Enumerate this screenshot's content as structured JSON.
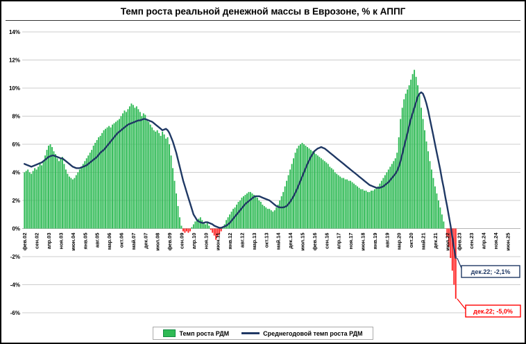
{
  "chart_data": {
    "type": "bar",
    "title": "Темп роста реальной денежной массы в Еврозоне, % к АППГ",
    "xlabel": "",
    "ylabel": "",
    "ylim": [
      -6,
      14
    ],
    "grid": true,
    "gridline_color": "#CCCCCC",
    "legend_position": "bottom",
    "axis_months_total": 288,
    "tick_interval_months": 7,
    "x_start": "фев.02",
    "x_tick_labels": [
      "фев.02",
      "сен.02",
      "апр.03",
      "ноя.03",
      "июн.04",
      "янв.05",
      "авг.05",
      "мар.06",
      "окт.06",
      "май.07",
      "дек.07",
      "июл.08",
      "фев.09",
      "сен.09",
      "апр.10",
      "ноя.10",
      "июн.11",
      "янв.12",
      "авг.12",
      "мар.13",
      "окт.13",
      "май.14",
      "дек.14",
      "июл.15",
      "фев.16",
      "сен.16",
      "апр.17",
      "ноя.17",
      "июн.18",
      "янв.19",
      "авг.19",
      "мар.20",
      "окт.20",
      "май.21",
      "дек.21",
      "июл.22",
      "фев.23",
      "сен.23",
      "апр.24",
      "ноя.24",
      "июн.25"
    ],
    "y_ticks": [
      {
        "v": 14,
        "label": "14%"
      },
      {
        "v": 12,
        "label": "12%"
      },
      {
        "v": 10,
        "label": "10%"
      },
      {
        "v": 8,
        "label": "8%"
      },
      {
        "v": 6,
        "label": "6%"
      },
      {
        "v": 4,
        "label": "4%"
      },
      {
        "v": 2,
        "label": "2%"
      },
      {
        "v": 0,
        "label": "0%"
      },
      {
        "v": -2,
        "label": "-2%"
      },
      {
        "v": -4,
        "label": "-4%"
      },
      {
        "v": -6,
        "label": "-6%"
      }
    ],
    "series": [
      {
        "name": "Темп роста РДМ",
        "kind": "bar",
        "color_positive": "#2FBA55",
        "color_negative": "#FF1F1F",
        "values": [
          4.0,
          4.1,
          4.2,
          4.0,
          3.9,
          4.1,
          4.3,
          4.2,
          4.4,
          4.6,
          4.5,
          4.8,
          5.2,
          5.6,
          5.9,
          6.0,
          5.8,
          5.5,
          5.3,
          5.0,
          4.8,
          5.0,
          5.1,
          4.6,
          4.2,
          3.9,
          3.7,
          3.6,
          3.5,
          3.6,
          3.8,
          4.0,
          4.2,
          4.4,
          4.6,
          4.8,
          5.0,
          5.2,
          5.4,
          5.6,
          5.9,
          6.1,
          6.3,
          6.5,
          6.6,
          6.8,
          7.0,
          7.1,
          7.2,
          7.3,
          7.2,
          7.4,
          7.5,
          7.6,
          7.7,
          7.8,
          8.0,
          8.2,
          8.4,
          8.3,
          8.5,
          8.7,
          8.9,
          8.8,
          8.6,
          8.7,
          8.5,
          8.3,
          8.0,
          8.2,
          8.1,
          7.8,
          7.6,
          7.4,
          7.2,
          7.0,
          6.9,
          7.0,
          6.8,
          6.6,
          6.9,
          6.7,
          6.4,
          6.5,
          6.0,
          5.2,
          4.3,
          3.4,
          2.5,
          1.6,
          0.8,
          0.2,
          -0.2,
          -0.3,
          -0.2,
          -0.3,
          -0.2,
          0.1,
          0.3,
          0.5,
          0.6,
          0.7,
          0.8,
          0.6,
          0.4,
          0.3,
          0.4,
          0.2,
          -0.1,
          -0.3,
          -0.5,
          -0.8,
          -0.6,
          -0.4,
          -0.2,
          0.1,
          0.3,
          0.6,
          0.8,
          1.0,
          1.2,
          1.4,
          1.5,
          1.7,
          1.9,
          2.0,
          2.2,
          2.3,
          2.4,
          2.5,
          2.6,
          2.6,
          2.5,
          2.4,
          2.3,
          2.2,
          2.0,
          1.9,
          1.7,
          1.6,
          1.5,
          1.4,
          1.4,
          1.3,
          1.2,
          1.3,
          1.5,
          1.7,
          2.0,
          2.3,
          2.6,
          3.0,
          3.4,
          3.8,
          4.2,
          4.6,
          5.0,
          5.4,
          5.7,
          5.9,
          6.0,
          6.1,
          6.0,
          5.9,
          5.8,
          5.7,
          5.6,
          5.5,
          5.4,
          5.3,
          5.2,
          5.1,
          5.0,
          4.9,
          4.8,
          4.7,
          4.6,
          4.4,
          4.3,
          4.2,
          4.0,
          3.9,
          3.8,
          3.7,
          3.6,
          3.6,
          3.5,
          3.5,
          3.4,
          3.4,
          3.3,
          3.2,
          3.1,
          3.0,
          2.9,
          2.8,
          2.8,
          2.7,
          2.7,
          2.6,
          2.6,
          2.7,
          2.7,
          2.8,
          2.9,
          3.0,
          3.2,
          3.4,
          3.6,
          3.8,
          4.0,
          4.2,
          4.4,
          4.6,
          4.8,
          5.0,
          5.4,
          6.5,
          7.8,
          8.6,
          9.2,
          9.6,
          9.9,
          10.2,
          10.6,
          11.0,
          11.3,
          10.8,
          10.2,
          9.5,
          8.6,
          7.8,
          7.0,
          6.2,
          5.5,
          4.8,
          4.2,
          3.6,
          3.0,
          2.5,
          2.0,
          1.5,
          1.0,
          0.5,
          0.0,
          -0.6,
          -1.3,
          -2.1,
          -3.0,
          -4.0,
          -5.0
        ]
      },
      {
        "name": "Среднегодовой темп роста РДМ",
        "kind": "line",
        "color": "#1F3864",
        "values": [
          4.6,
          4.55,
          4.5,
          4.45,
          4.4,
          4.45,
          4.5,
          4.55,
          4.6,
          4.65,
          4.7,
          4.8,
          4.9,
          5.0,
          5.1,
          5.15,
          5.2,
          5.2,
          5.15,
          5.1,
          5.05,
          5.0,
          5.0,
          4.9,
          4.8,
          4.7,
          4.6,
          4.5,
          4.4,
          4.35,
          4.3,
          4.3,
          4.3,
          4.35,
          4.4,
          4.45,
          4.5,
          4.6,
          4.7,
          4.8,
          4.9,
          5.0,
          5.1,
          5.25,
          5.4,
          5.5,
          5.6,
          5.75,
          5.9,
          6.05,
          6.2,
          6.35,
          6.5,
          6.65,
          6.8,
          6.9,
          7.0,
          7.1,
          7.2,
          7.3,
          7.4,
          7.45,
          7.5,
          7.55,
          7.6,
          7.65,
          7.7,
          7.7,
          7.75,
          7.8,
          7.8,
          7.75,
          7.7,
          7.65,
          7.6,
          7.5,
          7.4,
          7.3,
          7.2,
          7.1,
          7.0,
          7.05,
          7.1,
          7.0,
          6.8,
          6.5,
          6.2,
          5.8,
          5.4,
          4.9,
          4.4,
          3.9,
          3.4,
          3.0,
          2.6,
          2.2,
          1.8,
          1.4,
          1.0,
          0.8,
          0.6,
          0.5,
          0.45,
          0.4,
          0.4,
          0.45,
          0.45,
          0.4,
          0.35,
          0.3,
          0.2,
          0.15,
          0.1,
          0.05,
          0.05,
          0.1,
          0.15,
          0.2,
          0.3,
          0.4,
          0.55,
          0.7,
          0.85,
          1.0,
          1.15,
          1.3,
          1.45,
          1.6,
          1.75,
          1.85,
          1.95,
          2.05,
          2.15,
          2.25,
          2.3,
          2.3,
          2.3,
          2.25,
          2.2,
          2.15,
          2.1,
          2.05,
          2.0,
          1.9,
          1.8,
          1.7,
          1.6,
          1.55,
          1.5,
          1.5,
          1.5,
          1.55,
          1.6,
          1.75,
          1.9,
          2.1,
          2.3,
          2.55,
          2.8,
          3.1,
          3.4,
          3.7,
          4.0,
          4.3,
          4.6,
          4.85,
          5.1,
          5.3,
          5.5,
          5.6,
          5.7,
          5.75,
          5.8,
          5.75,
          5.7,
          5.6,
          5.5,
          5.4,
          5.3,
          5.2,
          5.1,
          5.0,
          4.9,
          4.8,
          4.7,
          4.6,
          4.5,
          4.4,
          4.3,
          4.2,
          4.1,
          4.0,
          3.9,
          3.8,
          3.7,
          3.6,
          3.5,
          3.4,
          3.3,
          3.2,
          3.1,
          3.05,
          3.0,
          2.95,
          2.9,
          2.9,
          2.9,
          2.95,
          3.0,
          3.1,
          3.2,
          3.3,
          3.45,
          3.6,
          3.75,
          3.9,
          4.1,
          4.4,
          4.8,
          5.3,
          5.8,
          6.3,
          6.8,
          7.3,
          7.8,
          8.2,
          8.6,
          9.0,
          9.4,
          9.6,
          9.7,
          9.6,
          9.3,
          8.9,
          8.4,
          7.8,
          7.2,
          6.6,
          6.0,
          5.4,
          4.8,
          4.2,
          3.5,
          2.9,
          2.2,
          1.6,
          0.9,
          0.2,
          -0.6,
          -1.4,
          -2.1
        ]
      }
    ],
    "annotations": [
      {
        "label": "дек.22; -2,1%",
        "series_index": 1,
        "point": "last",
        "color": "#1F3864"
      },
      {
        "label": "дек.22; -5,0%",
        "series_index": 0,
        "point": "last",
        "color": "#FF0000"
      }
    ]
  }
}
